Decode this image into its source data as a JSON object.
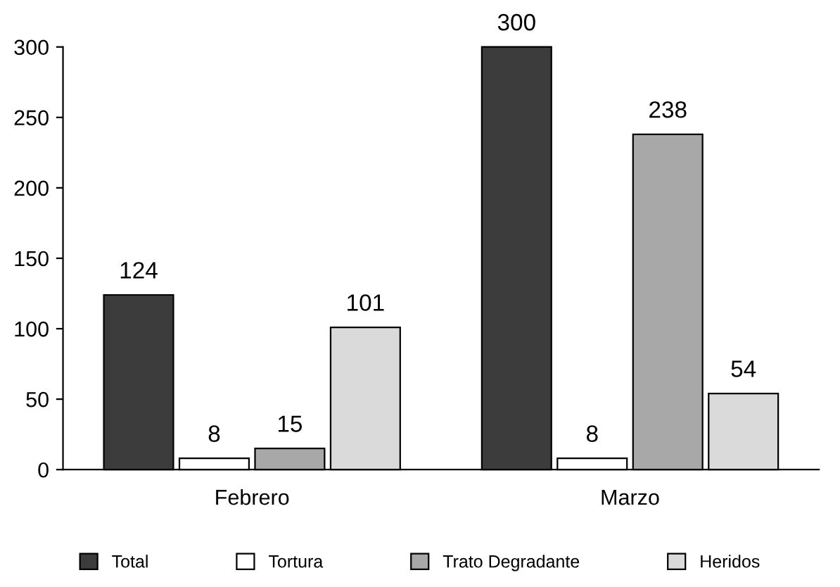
{
  "chart_data": {
    "type": "bar",
    "categories": [
      "Febrero",
      "Marzo"
    ],
    "series": [
      {
        "name": "Total",
        "color": "#3c3c3c",
        "values": [
          124,
          300
        ]
      },
      {
        "name": "Tortura",
        "color": "#ffffff",
        "values": [
          8,
          8
        ]
      },
      {
        "name": "Trato Degradante",
        "color": "#a8a8a8",
        "values": [
          15,
          238
        ]
      },
      {
        "name": "Heridos",
        "color": "#dadada",
        "values": [
          101,
          54
        ]
      }
    ],
    "ylim": [
      0,
      300
    ],
    "yticks": [
      0,
      50,
      100,
      150,
      200,
      250,
      300
    ],
    "data_labels": true,
    "legend": "bottom",
    "grid": false
  }
}
